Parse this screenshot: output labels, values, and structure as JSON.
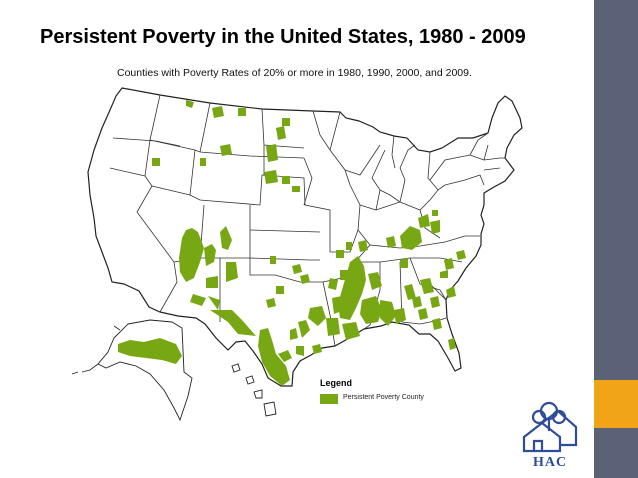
{
  "slide": {
    "title": "Persistent Poverty in the United States, 1980 - 2009",
    "subtitle": "Counties with Poverty Rates of 20% or more in 1980, 1990, 2000, and 2009."
  },
  "legend": {
    "title": "Legend",
    "items": [
      {
        "label": "Persistent Poverty County",
        "color": "#78a714"
      }
    ]
  },
  "logo": {
    "text": "HAC",
    "color": "#2e4c99"
  },
  "colors": {
    "sidebar": "#5b6177",
    "sidebar_accent": "#f0a418",
    "poverty": "#78a714",
    "state_border": "#222222"
  }
}
